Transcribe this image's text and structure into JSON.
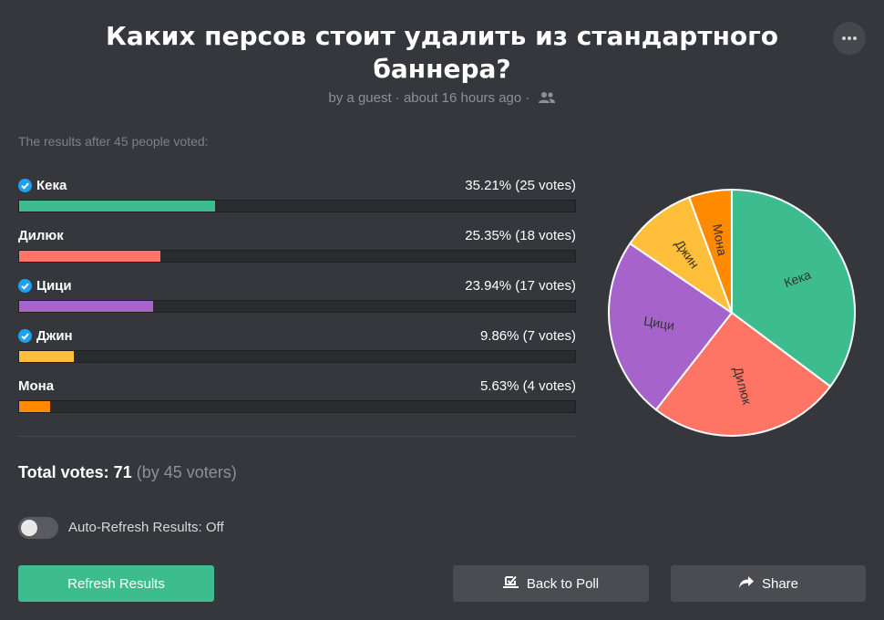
{
  "poll": {
    "title": "Каких персов стоит удалить из стандартного баннера?",
    "meta": "by a guest · about 16 hours ago ·",
    "summary": "The results after 45 people voted:"
  },
  "options": [
    {
      "name": "Кека",
      "result": "35.21% (25 votes)",
      "percent": 35.21,
      "selected": true,
      "color": "#3dbd8f",
      "pie_label": "Кека"
    },
    {
      "name": "Дилюк",
      "result": "25.35% (18 votes)",
      "percent": 25.35,
      "selected": false,
      "color": "#ff7565",
      "pie_label": "Дилюк"
    },
    {
      "name": "Цици",
      "result": "23.94% (17 votes)",
      "percent": 23.94,
      "selected": true,
      "color": "#a663cc",
      "pie_label": "Цици"
    },
    {
      "name": "Джин",
      "result": "9.86% (7 votes)",
      "percent": 9.86,
      "selected": true,
      "color": "#ffbf3a",
      "pie_label": "Джин"
    },
    {
      "name": "Мона",
      "result": "5.63% (4 votes)",
      "percent": 5.63,
      "selected": false,
      "color": "#ff8a00",
      "pie_label": "Мона"
    }
  ],
  "total": {
    "label": "Total votes: 71",
    "sub": "(by 45 voters)"
  },
  "auto_refresh": {
    "label": "Auto-Refresh Results: Off",
    "on": false
  },
  "buttons": {
    "refresh": "Refresh Results",
    "back": "Back to Poll",
    "share": "Share"
  },
  "colors": {
    "check": "#1da1f2",
    "background": "#36373c"
  }
}
